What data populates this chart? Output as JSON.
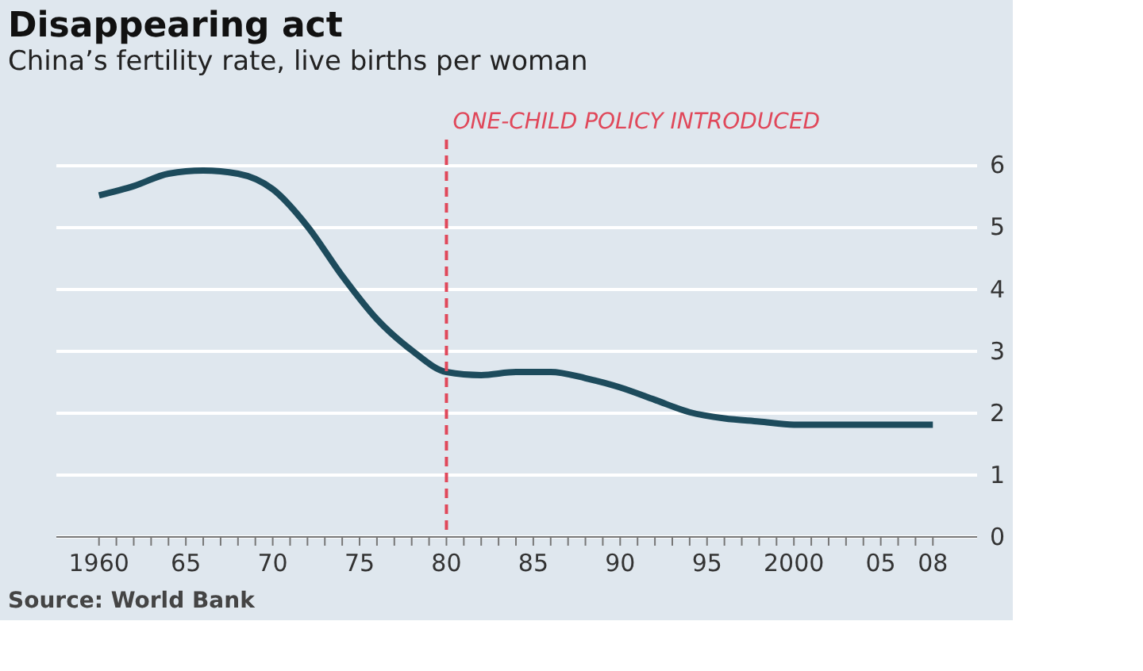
{
  "chart_data": {
    "type": "line",
    "title": "Disappearing act",
    "subtitle": "China’s fertility rate, live births per woman",
    "x": [
      1960,
      1962,
      1964,
      1966,
      1968,
      1970,
      1972,
      1974,
      1976,
      1978,
      1980,
      1982,
      1984,
      1986,
      1988,
      1990,
      1992,
      1994,
      1996,
      1998,
      2000,
      2004,
      2008
    ],
    "series": [
      {
        "color": "#1d4b5c",
        "values": [
          5.5,
          5.65,
          5.85,
          5.9,
          5.85,
          5.6,
          5.0,
          4.2,
          3.5,
          3.0,
          2.65,
          2.6,
          2.65,
          2.65,
          2.55,
          2.4,
          2.2,
          2.0,
          1.9,
          1.85,
          1.8,
          1.8,
          1.8
        ]
      }
    ],
    "xlim": [
      1957.5,
      2010.5
    ],
    "xticks": [
      {
        "value": 1960,
        "label": "1960"
      },
      {
        "value": 1961,
        "label": null
      },
      {
        "value": 1962,
        "label": null
      },
      {
        "value": 1963,
        "label": null
      },
      {
        "value": 1964,
        "label": null
      },
      {
        "value": 1965,
        "label": "65"
      },
      {
        "value": 1966,
        "label": null
      },
      {
        "value": 1967,
        "label": null
      },
      {
        "value": 1968,
        "label": null
      },
      {
        "value": 1969,
        "label": null
      },
      {
        "value": 1970,
        "label": "70"
      },
      {
        "value": 1971,
        "label": null
      },
      {
        "value": 1972,
        "label": null
      },
      {
        "value": 1973,
        "label": null
      },
      {
        "value": 1974,
        "label": null
      },
      {
        "value": 1975,
        "label": "75"
      },
      {
        "value": 1976,
        "label": null
      },
      {
        "value": 1977,
        "label": null
      },
      {
        "value": 1978,
        "label": null
      },
      {
        "value": 1979,
        "label": null
      },
      {
        "value": 1980,
        "label": "80"
      },
      {
        "value": 1981,
        "label": null
      },
      {
        "value": 1982,
        "label": null
      },
      {
        "value": 1983,
        "label": null
      },
      {
        "value": 1984,
        "label": null
      },
      {
        "value": 1985,
        "label": "85"
      },
      {
        "value": 1986,
        "label": null
      },
      {
        "value": 1987,
        "label": null
      },
      {
        "value": 1988,
        "label": null
      },
      {
        "value": 1989,
        "label": null
      },
      {
        "value": 1990,
        "label": "90"
      },
      {
        "value": 1991,
        "label": null
      },
      {
        "value": 1992,
        "label": null
      },
      {
        "value": 1993,
        "label": null
      },
      {
        "value": 1994,
        "label": null
      },
      {
        "value": 1995,
        "label": "95"
      },
      {
        "value": 1996,
        "label": null
      },
      {
        "value": 1997,
        "label": null
      },
      {
        "value": 1998,
        "label": null
      },
      {
        "value": 1999,
        "label": null
      },
      {
        "value": 2000,
        "label": "2000"
      },
      {
        "value": 2001,
        "label": null
      },
      {
        "value": 2002,
        "label": null
      },
      {
        "value": 2003,
        "label": null
      },
      {
        "value": 2004,
        "label": null
      },
      {
        "value": 2005,
        "label": "05"
      },
      {
        "value": 2006,
        "label": null
      },
      {
        "value": 2007,
        "label": null
      },
      {
        "value": 2008,
        "label": "08"
      }
    ],
    "ylim": [
      0,
      6.4
    ],
    "yticks": [
      0,
      1,
      2,
      3,
      4,
      5,
      6
    ],
    "grid": "y",
    "marker": "none",
    "line_style": "solid",
    "ref_lines": [
      {
        "axis": "x",
        "value": 1980,
        "label": "ONE-CHILD POLICY INTRODUCED",
        "color": "#e0485a",
        "line_style": "dashed"
      }
    ],
    "annotations": [
      "Source: World Bank"
    ]
  }
}
